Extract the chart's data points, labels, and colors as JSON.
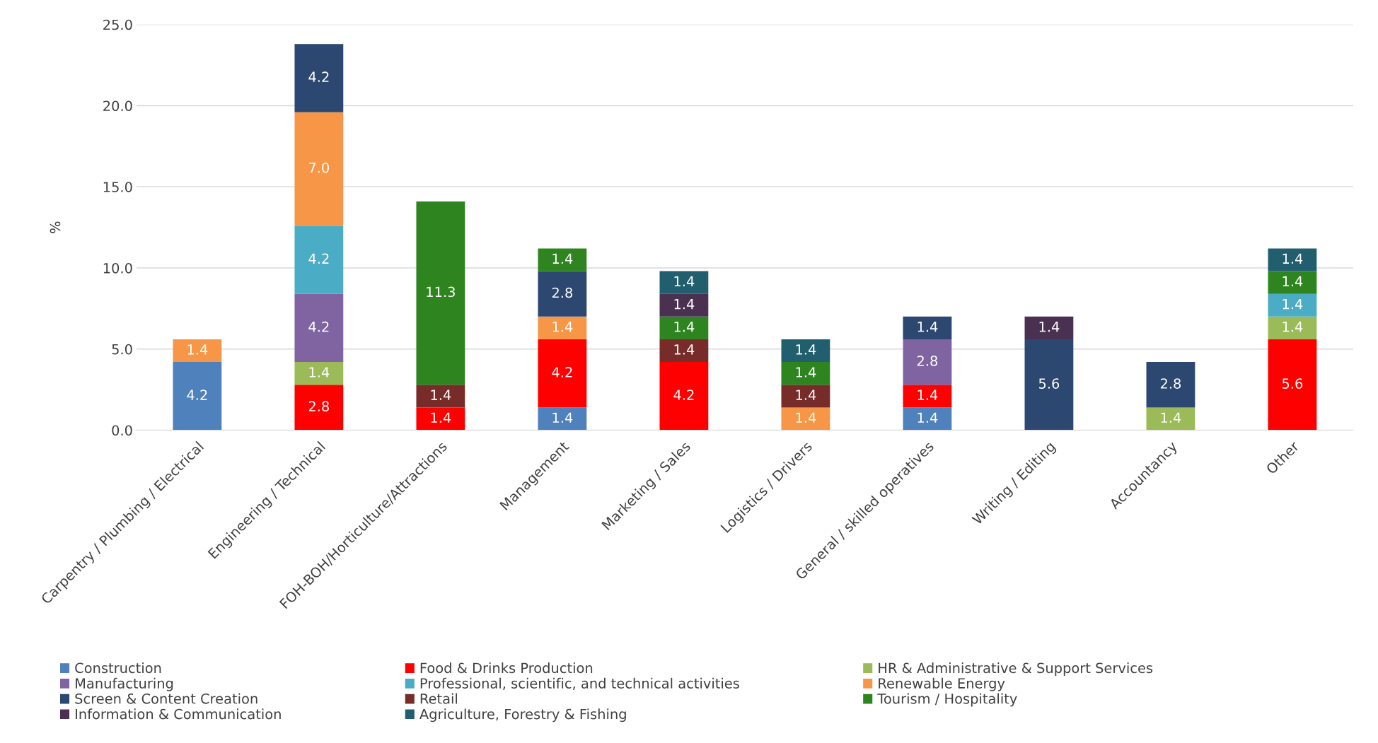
{
  "chart_data": {
    "type": "bar",
    "stacked": true,
    "ylabel": "%",
    "categories": [
      "Carpentry / Plumbing / Electrical",
      "Engineering / Technical",
      "FOH-BOH/Horticulture/Attractions",
      "Management",
      "Marketing / Sales",
      "Logistics / Drivers",
      "General / skilled operatives",
      "Writing / Editing",
      "Accountancy",
      "Other"
    ],
    "series": [
      {
        "name": "Construction",
        "color": "#4f81bd",
        "values": [
          4.2,
          null,
          null,
          1.4,
          null,
          null,
          1.4,
          null,
          null,
          null
        ],
        "value_labels": [
          "4.2",
          null,
          null,
          "1.4",
          null,
          null,
          "1.4",
          null,
          null,
          null
        ]
      },
      {
        "name": "Food & Drinks Production",
        "color": "#ff0000",
        "values": [
          null,
          2.8,
          1.4,
          4.2,
          4.2,
          null,
          1.4,
          null,
          null,
          5.6
        ],
        "value_labels": [
          null,
          "2.8",
          "1.4",
          "4.2",
          "4.2",
          null,
          "1.4",
          null,
          null,
          "5.6"
        ]
      },
      {
        "name": "HR & Administrative & Support Services",
        "color": "#9bbb59",
        "values": [
          null,
          1.4,
          null,
          null,
          null,
          null,
          null,
          null,
          1.4,
          1.4
        ],
        "value_labels": [
          null,
          "1.4",
          null,
          null,
          null,
          null,
          null,
          null,
          "1.4",
          "1.4"
        ]
      },
      {
        "name": "Manufacturing",
        "color": "#8064a2",
        "values": [
          null,
          4.2,
          null,
          null,
          null,
          null,
          2.8,
          null,
          null,
          null
        ],
        "value_labels": [
          null,
          "4.2",
          null,
          null,
          null,
          null,
          "2.8",
          null,
          null,
          null
        ]
      },
      {
        "name": "Professional, scientific, and technical activities",
        "color": "#4bacc6",
        "values": [
          null,
          4.2,
          null,
          null,
          null,
          null,
          null,
          null,
          null,
          1.4
        ],
        "value_labels": [
          null,
          "4.2",
          null,
          null,
          null,
          null,
          null,
          null,
          null,
          "1.4"
        ]
      },
      {
        "name": "Renewable Energy",
        "color": "#f79646",
        "values": [
          1.4,
          7.0,
          null,
          1.4,
          null,
          1.4,
          null,
          null,
          null,
          null
        ],
        "value_labels": [
          "1.4",
          "7.0",
          null,
          "1.4",
          null,
          "1.4",
          null,
          null,
          null,
          null
        ]
      },
      {
        "name": "Screen & Content Creation",
        "color": "#2c4770",
        "values": [
          null,
          4.2,
          null,
          2.8,
          null,
          null,
          1.4,
          5.6,
          2.8,
          null
        ],
        "value_labels": [
          null,
          "4.2",
          null,
          "2.8",
          null,
          null,
          "1.4",
          "5.6",
          "2.8",
          null
        ]
      },
      {
        "name": "Retail",
        "color": "#772c2a",
        "values": [
          null,
          null,
          1.4,
          null,
          1.4,
          1.4,
          null,
          null,
          null,
          null
        ],
        "value_labels": [
          null,
          null,
          "1.4",
          null,
          "1.4",
          "1.4",
          null,
          null,
          null,
          null
        ]
      },
      {
        "name": "Tourism / Hospitality",
        "color": "#2e8520",
        "values": [
          null,
          null,
          11.3,
          1.4,
          1.4,
          1.4,
          null,
          null,
          null,
          1.4
        ],
        "value_labels": [
          null,
          null,
          "11.3",
          "1.4",
          "1.4",
          "1.4",
          null,
          null,
          null,
          "1.4"
        ]
      },
      {
        "name": "Information & Communication",
        "color": "#4a3152",
        "values": [
          null,
          null,
          null,
          null,
          1.4,
          null,
          null,
          1.4,
          null,
          null
        ],
        "value_labels": [
          null,
          null,
          null,
          null,
          "1.4",
          null,
          null,
          "1.4",
          null,
          null
        ]
      },
      {
        "name": "Agriculture, Forestry & Fishing",
        "color": "#215e6e",
        "values": [
          null,
          null,
          null,
          null,
          1.4,
          1.4,
          null,
          null,
          null,
          1.4
        ],
        "value_labels": [
          null,
          null,
          null,
          null,
          "1.4",
          "1.4",
          null,
          null,
          null,
          "1.4"
        ]
      }
    ],
    "ylim": [
      0,
      25
    ],
    "yticks": [
      {
        "value": 0,
        "label": "0.0"
      },
      {
        "value": 5,
        "label": "5.0"
      },
      {
        "value": 10,
        "label": "10.0"
      },
      {
        "value": 15,
        "label": "15.0"
      },
      {
        "value": 20,
        "label": "20.0"
      },
      {
        "value": 25,
        "label": "25.0"
      }
    ],
    "grid": "y",
    "legend": "bottom"
  }
}
